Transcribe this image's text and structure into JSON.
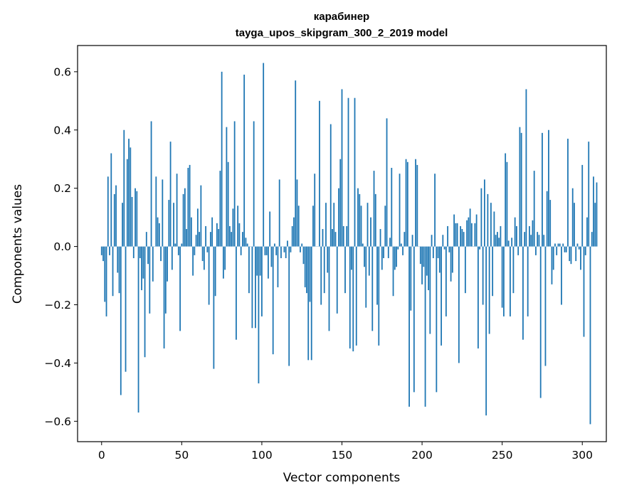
{
  "chart_data": {
    "type": "bar",
    "title_line1": "карабинер",
    "title_line2": "tayga_upos_skipgram_300_2_2019 model",
    "xlabel": "Vector components",
    "ylabel": "Components values",
    "xlim": [
      -15,
      315
    ],
    "ylim": [
      -0.67,
      0.69
    ],
    "xticks": [
      0,
      50,
      100,
      150,
      200,
      250,
      300
    ],
    "xtick_labels": [
      "0",
      "50",
      "100",
      "150",
      "200",
      "250",
      "300"
    ],
    "yticks": [
      -0.6,
      -0.4,
      -0.2,
      0.0,
      0.2,
      0.4,
      0.6
    ],
    "ytick_labels": [
      "−0.6",
      "−0.4",
      "−0.2",
      "0.0",
      "0.2",
      "0.4",
      "0.6"
    ],
    "bar_color": "#1f77b4",
    "grid": false,
    "values": [
      -0.03,
      -0.05,
      -0.19,
      -0.24,
      0.24,
      -0.03,
      0.32,
      -0.17,
      0.18,
      0.21,
      -0.09,
      -0.16,
      -0.51,
      0.15,
      0.4,
      -0.43,
      0.3,
      0.37,
      0.34,
      0.17,
      -0.04,
      0.2,
      0.19,
      -0.57,
      -0.04,
      -0.15,
      -0.11,
      -0.38,
      0.05,
      -0.06,
      -0.23,
      0.43,
      -0.12,
      0.0,
      0.24,
      0.1,
      0.08,
      -0.05,
      0.23,
      -0.35,
      -0.23,
      -0.12,
      0.16,
      0.36,
      -0.08,
      0.15,
      0.01,
      0.25,
      -0.03,
      -0.29,
      0.01,
      0.18,
      0.2,
      0.06,
      0.27,
      0.28,
      0.1,
      -0.1,
      -0.03,
      0.04,
      0.13,
      0.05,
      0.21,
      -0.05,
      -0.08,
      0.07,
      -0.02,
      -0.2,
      0.05,
      0.1,
      -0.42,
      -0.17,
      0.08,
      0.06,
      0.26,
      0.6,
      -0.11,
      -0.08,
      0.41,
      0.29,
      0.07,
      0.05,
      0.13,
      0.43,
      -0.32,
      0.14,
      0.08,
      -0.03,
      0.05,
      0.59,
      0.03,
      0.01,
      -0.16,
      0.0,
      -0.28,
      0.43,
      -0.28,
      -0.1,
      -0.47,
      -0.1,
      -0.24,
      0.63,
      -0.03,
      -0.03,
      -0.11,
      0.12,
      -0.07,
      -0.37,
      0.01,
      -0.03,
      -0.14,
      0.23,
      -0.04,
      0.0,
      -0.02,
      -0.04,
      0.02,
      -0.41,
      -0.02,
      0.07,
      0.1,
      0.57,
      0.23,
      0.14,
      -0.02,
      0.01,
      -0.06,
      -0.14,
      -0.16,
      -0.39,
      -0.19,
      -0.39,
      0.14,
      0.25,
      0.0,
      0.0,
      0.5,
      -0.2,
      0.06,
      -0.16,
      0.15,
      -0.09,
      -0.29,
      0.42,
      0.06,
      0.15,
      0.05,
      -0.23,
      0.2,
      0.3,
      0.54,
      0.07,
      -0.16,
      0.07,
      0.51,
      -0.35,
      -0.08,
      -0.36,
      0.51,
      -0.34,
      0.2,
      0.18,
      0.14,
      0.01,
      -0.07,
      -0.21,
      0.15,
      -0.1,
      0.1,
      -0.29,
      0.26,
      0.18,
      -0.2,
      -0.34,
      0.06,
      -0.08,
      -0.04,
      0.14,
      0.44,
      -0.04,
      0.03,
      0.27,
      -0.17,
      -0.08,
      -0.07,
      -0.01,
      0.25,
      0.01,
      -0.03,
      0.05,
      0.3,
      0.29,
      -0.55,
      -0.22,
      0.04,
      -0.5,
      0.3,
      0.28,
      0.0,
      -0.06,
      -0.13,
      -0.07,
      -0.55,
      -0.1,
      -0.15,
      -0.3,
      0.04,
      -0.04,
      0.25,
      -0.5,
      -0.04,
      -0.09,
      -0.34,
      0.04,
      -0.01,
      -0.24,
      0.07,
      -0.02,
      -0.12,
      -0.09,
      0.11,
      0.08,
      0.08,
      -0.4,
      0.07,
      0.06,
      0.05,
      -0.16,
      0.09,
      0.1,
      0.13,
      0.08,
      0.0,
      0.08,
      0.11,
      -0.35,
      -0.01,
      0.2,
      -0.2,
      0.23,
      -0.58,
      0.18,
      -0.3,
      0.15,
      -0.17,
      0.12,
      0.04,
      0.05,
      0.03,
      0.07,
      -0.21,
      -0.24,
      0.32,
      0.29,
      0.02,
      -0.24,
      0.03,
      -0.16,
      0.1,
      0.07,
      -0.03,
      0.41,
      0.39,
      -0.32,
      0.05,
      0.54,
      -0.24,
      0.07,
      0.04,
      0.09,
      0.26,
      -0.03,
      0.05,
      0.04,
      -0.52,
      0.39,
      0.04,
      -0.41,
      0.19,
      0.4,
      0.16,
      -0.13,
      -0.08,
      0.01,
      -0.03,
      0.01,
      0.01,
      -0.2,
      0.01,
      -0.02,
      -0.02,
      0.37,
      -0.05,
      -0.06,
      0.2,
      0.15,
      -0.05,
      0.01,
      -0.01,
      -0.08,
      0.28,
      -0.31,
      -0.03,
      0.1,
      0.36,
      -0.61,
      0.05,
      0.24,
      0.15,
      0.22
    ]
  }
}
